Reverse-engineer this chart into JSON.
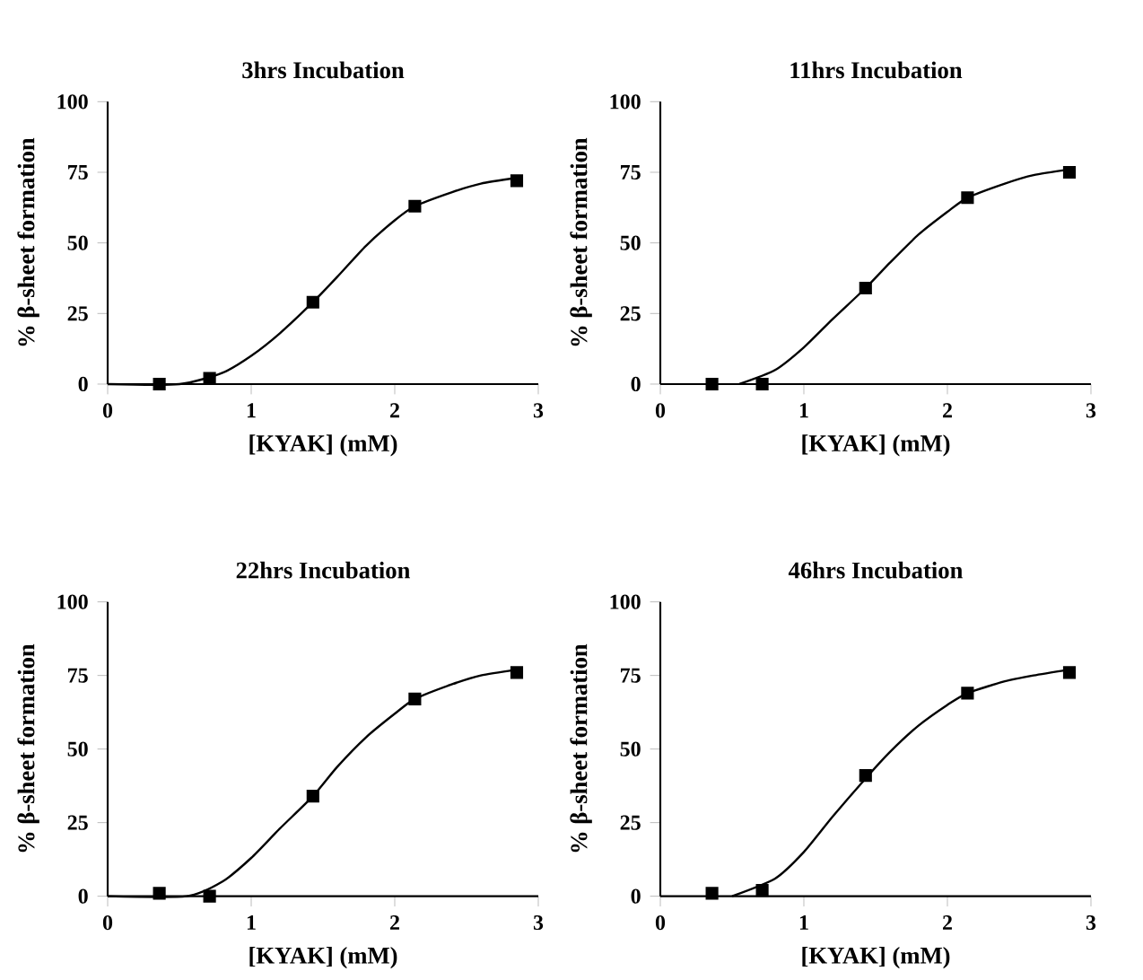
{
  "chart_data": [
    {
      "type": "scatter",
      "title": "3hrs Incubation",
      "xlabel": "[KYAK] (mM)",
      "ylabel": "% β-sheet formation",
      "xlim": [
        0,
        3
      ],
      "xticks": [
        0,
        1,
        2,
        3
      ],
      "ylim": [
        0,
        100
      ],
      "yticks": [
        0,
        25,
        50,
        75,
        100
      ],
      "series": [
        {
          "marker": "square",
          "color": "#000000",
          "x": [
            0.36,
            0.71,
            1.43,
            2.14,
            2.85
          ],
          "values": [
            0,
            2,
            29,
            63,
            72
          ]
        },
        {
          "type": "line",
          "marker": "none",
          "color": "#000000",
          "x": [
            0,
            0.5,
            0.8,
            1.0,
            1.2,
            1.43,
            1.6,
            1.8,
            2.0,
            2.14,
            2.4,
            2.6,
            2.85
          ],
          "values": [
            0,
            0,
            4,
            10,
            18,
            29,
            38,
            49,
            58,
            63,
            68,
            71,
            73
          ]
        }
      ]
    },
    {
      "type": "scatter",
      "title": "11hrs Incubation",
      "xlabel": "[KYAK] (mM)",
      "ylabel": "% β-sheet formation",
      "xlim": [
        0,
        3
      ],
      "xticks": [
        0,
        1,
        2,
        3
      ],
      "ylim": [
        0,
        100
      ],
      "yticks": [
        0,
        25,
        50,
        75,
        100
      ],
      "series": [
        {
          "marker": "square",
          "color": "#000000",
          "x": [
            0.36,
            0.71,
            1.43,
            2.14,
            2.85
          ],
          "values": [
            0,
            0,
            34,
            66,
            75
          ]
        },
        {
          "type": "line",
          "marker": "none",
          "color": "#000000",
          "x": [
            0.55,
            0.8,
            1.0,
            1.2,
            1.43,
            1.6,
            1.8,
            2.0,
            2.14,
            2.4,
            2.6,
            2.85
          ],
          "values": [
            0,
            5,
            13,
            23,
            34,
            43,
            53,
            61,
            66,
            71,
            74,
            76
          ]
        }
      ]
    },
    {
      "type": "scatter",
      "title": "22hrs Incubation",
      "xlabel": "[KYAK] (mM)",
      "ylabel": "% β-sheet formation",
      "xlim": [
        0,
        3
      ],
      "xticks": [
        0,
        1,
        2,
        3
      ],
      "ylim": [
        0,
        100
      ],
      "yticks": [
        0,
        25,
        50,
        75,
        100
      ],
      "series": [
        {
          "marker": "square",
          "color": "#000000",
          "x": [
            0.36,
            0.71,
            1.43,
            2.14,
            2.85
          ],
          "values": [
            1,
            0,
            34,
            67,
            76
          ]
        },
        {
          "type": "line",
          "marker": "none",
          "color": "#000000",
          "x": [
            0,
            0.55,
            0.8,
            1.0,
            1.2,
            1.43,
            1.6,
            1.8,
            2.0,
            2.14,
            2.4,
            2.6,
            2.85
          ],
          "values": [
            0,
            0,
            5,
            13,
            23,
            34,
            44,
            54,
            62,
            67,
            72,
            75,
            77
          ]
        }
      ]
    },
    {
      "type": "scatter",
      "title": "46hrs Incubation",
      "xlabel": "[KYAK] (mM)",
      "ylabel": "% β-sheet formation",
      "xlim": [
        0,
        3
      ],
      "xticks": [
        0,
        1,
        2,
        3
      ],
      "ylim": [
        0,
        100
      ],
      "yticks": [
        0,
        25,
        50,
        75,
        100
      ],
      "series": [
        {
          "marker": "square",
          "color": "#000000",
          "x": [
            0.36,
            0.71,
            1.43,
            2.14,
            2.85
          ],
          "values": [
            1,
            2,
            41,
            69,
            76
          ]
        },
        {
          "type": "line",
          "marker": "none",
          "color": "#000000",
          "x": [
            0.5,
            0.8,
            1.0,
            1.2,
            1.43,
            1.6,
            1.8,
            2.0,
            2.14,
            2.4,
            2.6,
            2.85
          ],
          "values": [
            0,
            6,
            15,
            27,
            40,
            49,
            58,
            65,
            69,
            73,
            75,
            77
          ]
        }
      ]
    }
  ]
}
